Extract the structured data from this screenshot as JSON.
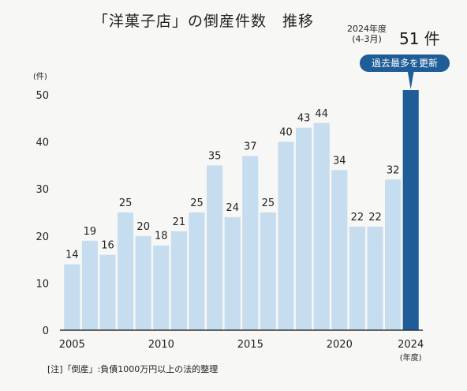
{
  "header": {
    "title": "「洋菓子店」の倒産件数　推移",
    "latest_period_line1": "2024年度",
    "latest_period_line2": "(4-3月)",
    "latest_value": "51 件",
    "record_badge": "過去最多を更新"
  },
  "note": "[注]「倒産」:負債1000万円以上の法的整理",
  "colors": {
    "bar": "#c6dcef",
    "bar_highlight": "#1f5d98",
    "axis": "#333333",
    "badge": "#1f5d98"
  },
  "chart_data": {
    "type": "bar",
    "title": "「洋菓子店」の倒産件数　推移",
    "y_unit_label": "(件)",
    "x_unit_label": "(年度)",
    "ylim": [
      0,
      50
    ],
    "y_ticks": [
      0,
      10,
      20,
      30,
      40,
      50
    ],
    "x_tick_labels": [
      "2005",
      "2010",
      "2015",
      "2020",
      "2024"
    ],
    "categories": [
      "2005",
      "2006",
      "2007",
      "2008",
      "2009",
      "2010",
      "2011",
      "2012",
      "2013",
      "2014",
      "2015",
      "2016",
      "2017",
      "2018",
      "2019",
      "2020",
      "2021",
      "2022",
      "2023",
      "2024"
    ],
    "values": [
      14,
      19,
      16,
      25,
      20,
      18,
      21,
      25,
      35,
      24,
      37,
      25,
      40,
      43,
      44,
      34,
      22,
      22,
      32,
      51
    ],
    "data_labels": [
      "14",
      "19",
      "16",
      "25",
      "20",
      "18",
      "21",
      "25",
      "35",
      "24",
      "37",
      "25",
      "40",
      "43",
      "44",
      "34",
      "22",
      "22",
      "32",
      ""
    ],
    "highlight_index": 19,
    "grid": false,
    "legend": "none"
  }
}
